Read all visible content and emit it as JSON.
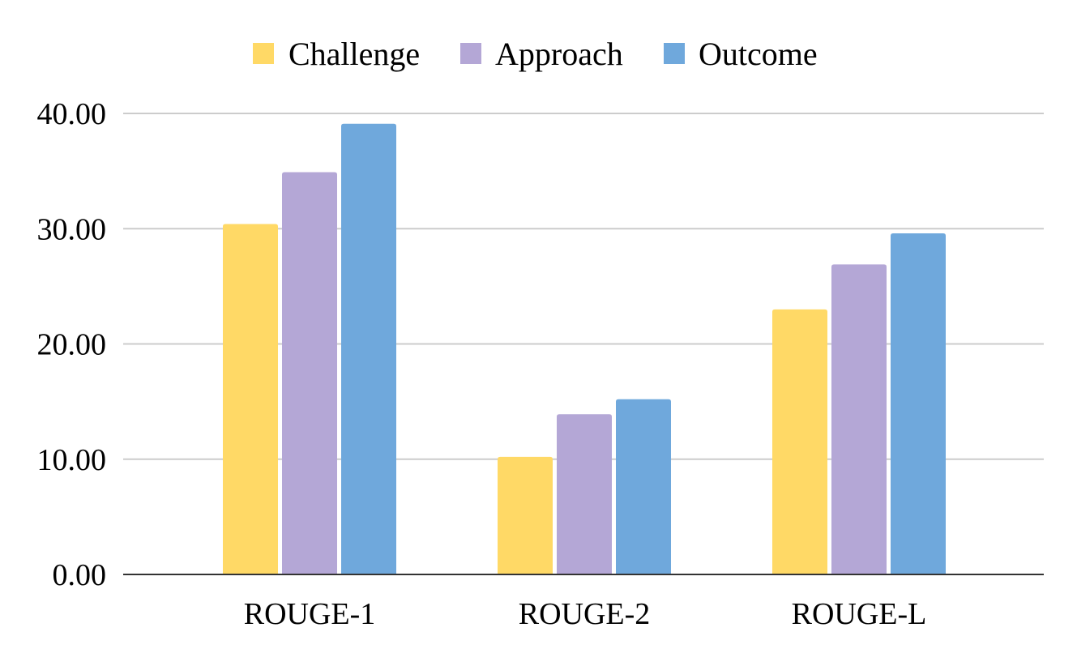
{
  "chart_data": {
    "type": "bar",
    "categories": [
      "ROUGE-1",
      "ROUGE-2",
      "ROUGE-L"
    ],
    "series": [
      {
        "name": "Challenge",
        "color": "#FFD966",
        "values": [
          30.4,
          10.2,
          23.0
        ]
      },
      {
        "name": "Approach",
        "color": "#B4A7D6",
        "values": [
          34.9,
          13.9,
          26.9
        ]
      },
      {
        "name": "Outcome",
        "color": "#6FA8DC",
        "values": [
          39.1,
          15.2,
          29.6
        ]
      }
    ],
    "ylim": [
      0,
      40
    ],
    "yticks": [
      "0.00",
      "10.00",
      "20.00",
      "30.00",
      "40.00"
    ],
    "ytick_values": [
      0,
      10,
      20,
      30,
      40
    ],
    "grid": true,
    "legend_position": "top-center"
  }
}
